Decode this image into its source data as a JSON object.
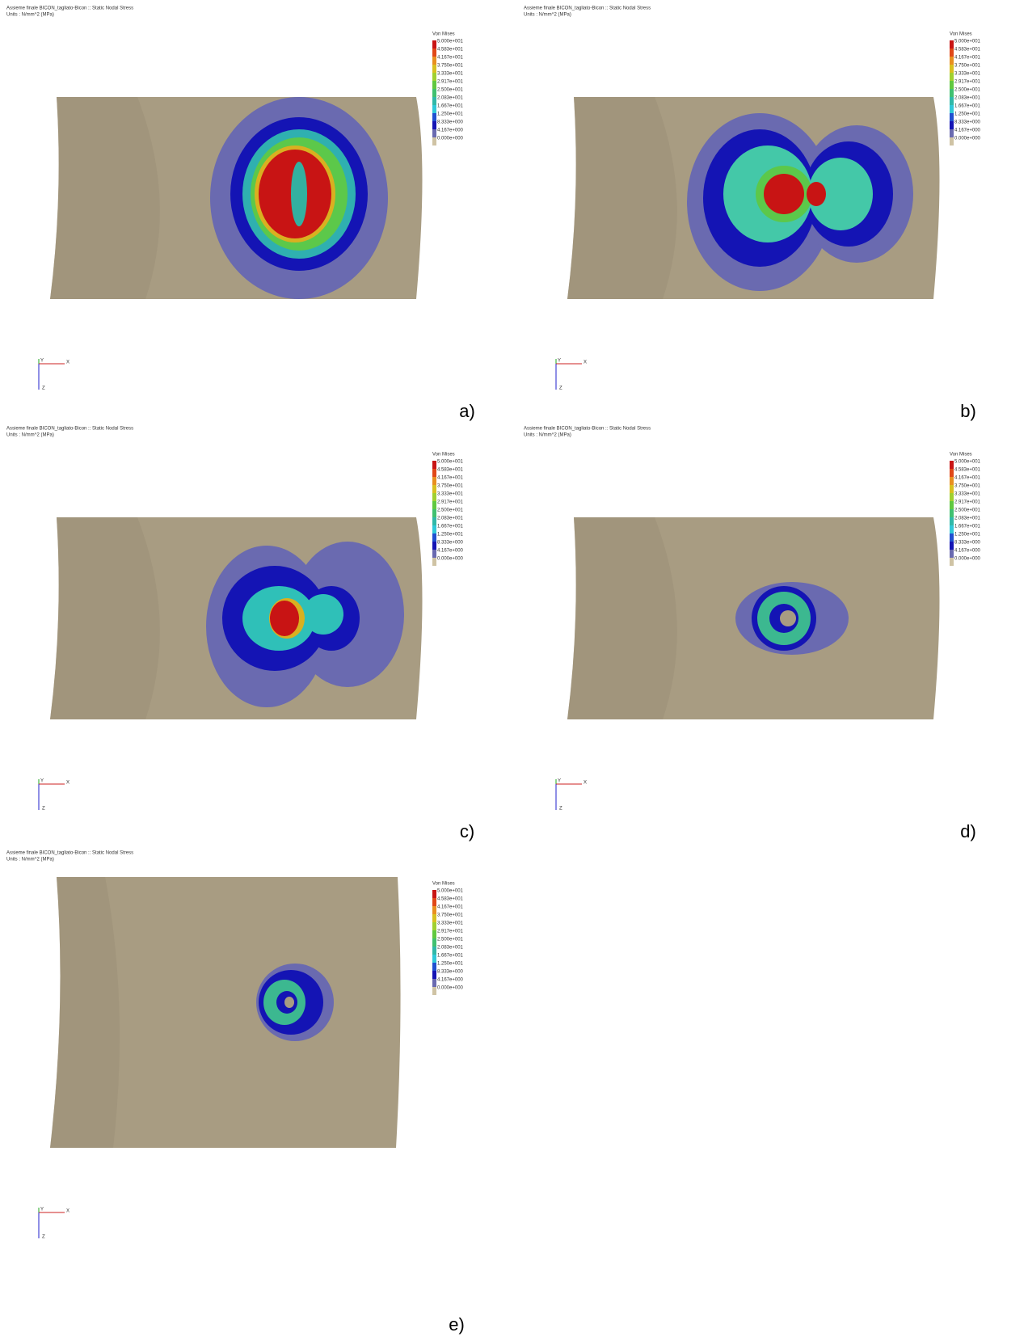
{
  "panels": [
    {
      "title": "Assieme finale BICON_tagliato-Bicon :: Static Nodal Stress",
      "units": "Units : N/mm^2 (MPa)",
      "legend": {
        "title": "Von Mises",
        "labels": [
          "5.000e+001",
          "4.583e+001",
          "4.167e+001",
          "3.750e+001",
          "3.333e+001",
          "2.917e+001",
          "2.500e+001",
          "2.083e+001",
          "1.667e+001",
          "1.250e+001",
          "8.333e+000",
          "4.167e+000",
          "0.000e+000"
        ]
      },
      "axes": {
        "y": "Y",
        "x": "X",
        "z": "Z"
      },
      "label": "a)"
    },
    {
      "title": "Assieme finale BICON_tagliato-Bicon :: Static Nodal Stress",
      "units": "Units : N/mm^2 (MPa)",
      "legend": {
        "title": "Von Mises",
        "labels": [
          "5.000e+001",
          "4.583e+001",
          "4.167e+001",
          "3.750e+001",
          "3.333e+001",
          "2.917e+001",
          "2.500e+001",
          "2.083e+001",
          "1.667e+001",
          "1.250e+001",
          "8.333e+000",
          "4.167e+000",
          "0.000e+000"
        ]
      },
      "axes": {
        "y": "Y",
        "x": "X",
        "z": "Z"
      },
      "label": "b)"
    },
    {
      "title": "Assieme finale BICON_tagliato-Bicon :: Static Nodal Stress",
      "units": "Units : N/mm^2 (MPa)",
      "legend": {
        "title": "Von Mises",
        "labels": [
          "5.000e+001",
          "4.583e+001",
          "4.167e+001",
          "3.750e+001",
          "3.333e+001",
          "2.917e+001",
          "2.500e+001",
          "2.083e+001",
          "1.667e+001",
          "1.250e+001",
          "8.333e+000",
          "4.167e+000",
          "0.000e+000"
        ]
      },
      "axes": {
        "y": "Y",
        "x": "X",
        "z": "Z"
      },
      "label": "c)"
    },
    {
      "title": "Assieme finale BICON_tagliato-Bicon :: Static Nodal Stress",
      "units": "Units : N/mm^2 (MPa)",
      "legend": {
        "title": "Von Mises",
        "labels": [
          "5.000e+001",
          "4.583e+001",
          "4.167e+001",
          "3.750e+001",
          "3.333e+001",
          "2.917e+001",
          "2.500e+001",
          "2.083e+001",
          "1.667e+001",
          "1.250e+001",
          "8.333e+000",
          "4.167e+000",
          "0.000e+000"
        ]
      },
      "axes": {
        "y": "Y",
        "x": "X",
        "z": "Z"
      },
      "label": "d)"
    },
    {
      "title": "Assieme finale BICON_tagliato-Bicon :: Static Nodal Stress",
      "units": "Units : N/mm^2 (MPa)",
      "legend": {
        "title": "Von Mises",
        "labels": [
          "5.000e+001",
          "4.583e+001",
          "4.167e+001",
          "3.750e+001",
          "3.333e+001",
          "2.917e+001",
          "2.500e+001",
          "2.083e+001",
          "1.667e+001",
          "1.250e+001",
          "8.333e+000",
          "4.167e+000",
          "0.000e+000"
        ]
      },
      "axes": {
        "y": "Y",
        "x": "X",
        "z": "Z"
      },
      "label": "e)"
    }
  ]
}
